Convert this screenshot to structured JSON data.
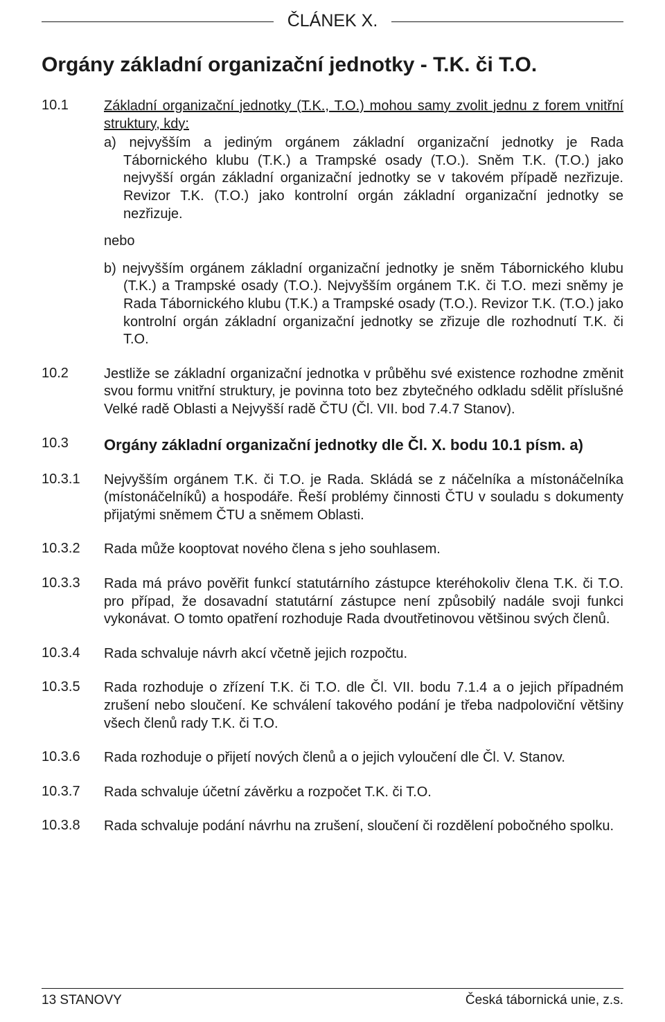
{
  "article_header": "ČLÁNEK X.",
  "main_title": "Orgány základní organizační jednotky - T.K. či T.O.",
  "clauses": {
    "c10_1": {
      "num": "10.1",
      "lead": "Základní organizační jednotky (T.K., T.O.) mohou samy zvolit jednu z forem vnitřní struktury, kdy:",
      "a": "a) nejvyšším a jediným orgánem základní organizační jednotky je Rada Tábornického klubu (T.K.) a Trampské osady (T.O.). Sněm T.K. (T.O.) jako nejvyšší orgán základní organizační jednotky se v takovém případě nezřizuje. Revizor T.K. (T.O.) jako kontrolní orgán základní organizační jednotky se nezřizuje.",
      "nebo": "nebo",
      "b": "b) nejvyšším orgánem základní organizační jednotky je sněm Tábornického klubu (T.K.) a Trampské osady (T.O.). Nejvyšším orgánem T.K. či T.O. mezi sněmy je Rada Tábornického klubu (T.K.) a Trampské osady (T.O.). Revizor T.K. (T.O.) jako kontrolní orgán základní organizační jednotky se zřizuje dle rozhodnutí T.K. či T.O."
    },
    "c10_2": {
      "num": "10.2",
      "body": "Jestliže se základní organizační jednotka v průběhu své existence rozhodne změnit svou formu vnitřní struktury, je povinna toto bez zbytečného odkladu sdělit příslušné Velké radě Oblasti a Nejvyšší radě ČTU (Čl. VII. bod 7.4.7 Stanov)."
    },
    "c10_3": {
      "num": "10.3",
      "body": "Orgány základní organizační jednotky dle Čl. X. bodu 10.1 písm. a)"
    },
    "c10_3_1": {
      "num": "10.3.1",
      "body": "Nejvyšším orgánem T.K. či T.O. je Rada. Skládá se z náčelníka a místonáčelníka (místonáčelníků) a hospodáře. Řeší problémy činnosti ČTU v souladu s dokumenty přijatými sněmem ČTU a sněmem Oblasti."
    },
    "c10_3_2": {
      "num": "10.3.2",
      "body": "Rada může kooptovat nového člena s jeho souhlasem."
    },
    "c10_3_3": {
      "num": "10.3.3",
      "body": "Rada má právo pověřit funkcí statutárního zástupce kteréhokoliv člena T.K. či T.O. pro případ, že dosavadní statutární zástupce není způsobilý nadále svoji funkci vykonávat. O tomto opatření rozhoduje Rada dvoutřetinovou většinou svých členů."
    },
    "c10_3_4": {
      "num": "10.3.4",
      "body": "Rada schvaluje návrh akcí včetně jejich rozpočtu."
    },
    "c10_3_5": {
      "num": "10.3.5",
      "body": "Rada rozhoduje o zřízení T.K. či T.O. dle Čl. VII. bodu 7.1.4 a o jejich případném zrušení nebo sloučení. Ke schválení takového podání je třeba nadpoloviční většiny všech členů rady T.K. či T.O."
    },
    "c10_3_6": {
      "num": "10.3.6",
      "body": "Rada rozhoduje o přijetí nových členů a o jejich vyloučení dle Čl. V. Stanov."
    },
    "c10_3_7": {
      "num": "10.3.7",
      "body": "Rada schvaluje účetní závěrku a rozpočet  T.K. či T.O."
    },
    "c10_3_8": {
      "num": "10.3.8",
      "body": "Rada schvaluje podání návrhu na zrušení, sloučení či rozdělení pobočného spolku."
    }
  },
  "footer": {
    "left": "13  STANOVY",
    "right": "Česká tábornická unie, z.s."
  }
}
